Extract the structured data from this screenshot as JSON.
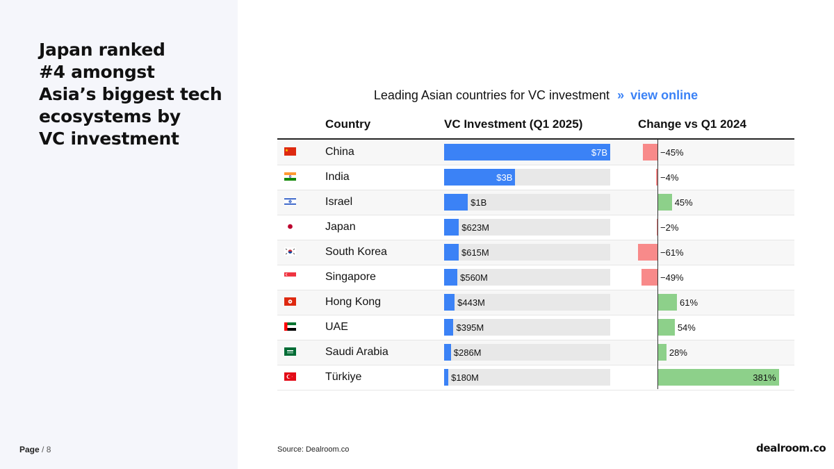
{
  "headline": [
    "Japan ranked",
    "#4 amongst",
    "Asia’s biggest tech",
    "ecosystems by",
    "VC investment"
  ],
  "page": {
    "label": "Page",
    "separator": "/",
    "number": "8"
  },
  "source": "Source:  Dealroom.co",
  "logo": "dealroom.co",
  "colors": {
    "bar": "#3b82f6",
    "negative": "#f88a8a",
    "positive": "#8dd08a",
    "accent": "#3b82f6"
  },
  "chart_data": {
    "type": "table",
    "title": "Leading Asian countries for VC investment",
    "link_arrow": "»",
    "link_text": "view online",
    "columns": [
      "Country",
      "VC Investment (Q1 2025)",
      "Change vs Q1 2024"
    ],
    "rows": [
      {
        "country": "China",
        "flag_icon": "flag-china-icon",
        "investment_musd": 7000,
        "investment_label": "$7B",
        "change_pct": -45,
        "change_label": "−45%"
      },
      {
        "country": "India",
        "flag_icon": "flag-india-icon",
        "investment_musd": 3000,
        "investment_label": "$3B",
        "change_pct": -4,
        "change_label": "−4%"
      },
      {
        "country": "Israel",
        "flag_icon": "flag-israel-icon",
        "investment_musd": 1000,
        "investment_label": "$1B",
        "change_pct": 45,
        "change_label": "45%"
      },
      {
        "country": "Japan",
        "flag_icon": "flag-japan-icon",
        "investment_musd": 623,
        "investment_label": "$623M",
        "change_pct": -2,
        "change_label": "−2%"
      },
      {
        "country": "South Korea",
        "flag_icon": "flag-south-korea-icon",
        "investment_musd": 615,
        "investment_label": "$615M",
        "change_pct": -61,
        "change_label": "−61%"
      },
      {
        "country": "Singapore",
        "flag_icon": "flag-singapore-icon",
        "investment_musd": 560,
        "investment_label": "$560M",
        "change_pct": -49,
        "change_label": "−49%"
      },
      {
        "country": "Hong Kong",
        "flag_icon": "flag-hong-kong-icon",
        "investment_musd": 443,
        "investment_label": "$443M",
        "change_pct": 61,
        "change_label": "61%"
      },
      {
        "country": "UAE",
        "flag_icon": "flag-uae-icon",
        "investment_musd": 395,
        "investment_label": "$395M",
        "change_pct": 54,
        "change_label": "54%"
      },
      {
        "country": "Saudi Arabia",
        "flag_icon": "flag-saudi-arabia-icon",
        "investment_musd": 286,
        "investment_label": "$286M",
        "change_pct": 28,
        "change_label": "28%"
      },
      {
        "country": "Türkiye",
        "flag_icon": "flag-turkiye-icon",
        "investment_musd": 180,
        "investment_label": "$180M",
        "change_pct": 381,
        "change_label": "381%"
      }
    ]
  }
}
